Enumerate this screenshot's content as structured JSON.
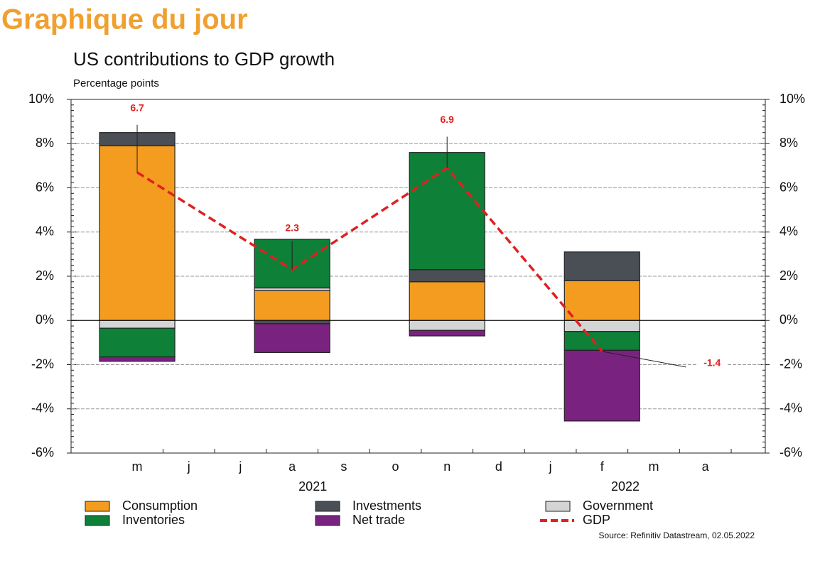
{
  "header": {
    "title": "Graphique du jour"
  },
  "chart_data": {
    "type": "stacked_bar_line",
    "title": "US contributions to GDP growth",
    "subtitle": "Percentage points",
    "source": "Source: Refinitiv Datastream, 02.05.2022",
    "x": [
      0,
      3,
      6,
      9
    ],
    "xlim": [
      -1.28,
      12.16
    ],
    "xticks": [
      {
        "value": 0,
        "label": "m"
      },
      {
        "value": 1,
        "label": "j"
      },
      {
        "value": 2,
        "label": "j"
      },
      {
        "value": 3,
        "label": "a"
      },
      {
        "value": 4,
        "label": "s"
      },
      {
        "value": 5,
        "label": "o"
      },
      {
        "value": 6,
        "label": "n"
      },
      {
        "value": 7,
        "label": "d"
      },
      {
        "value": 8,
        "label": "j"
      },
      {
        "value": 9,
        "label": "f"
      },
      {
        "value": 10,
        "label": "m"
      },
      {
        "value": 11,
        "label": "a"
      }
    ],
    "year_labels": [
      {
        "x": 3.4,
        "label": "2021"
      },
      {
        "x": 9.45,
        "label": "2022"
      }
    ],
    "ylim": [
      -6,
      10
    ],
    "yticks": [
      {
        "value": -6,
        "label": "-6%"
      },
      {
        "value": -4,
        "label": "-4%"
      },
      {
        "value": -2,
        "label": "-2%"
      },
      {
        "value": 0,
        "label": "0%"
      },
      {
        "value": 2,
        "label": "2%"
      },
      {
        "value": 4,
        "label": "4%"
      },
      {
        "value": 6,
        "label": "6%"
      },
      {
        "value": 8,
        "label": "8%"
      },
      {
        "value": 10,
        "label": "10%"
      }
    ],
    "grid": true,
    "series": [
      {
        "name": "Consumption",
        "color": "#f39c1f",
        "values": [
          7.9,
          1.35,
          1.75,
          1.8
        ]
      },
      {
        "name": "Government",
        "color": "#d4d4d4",
        "values": [
          -0.35,
          0.12,
          -0.45,
          -0.5
        ]
      },
      {
        "name": "Investments",
        "color": "#4a4f55",
        "values": [
          0.6,
          -0.15,
          0.55,
          1.3
        ]
      },
      {
        "name": "Inventories",
        "color": "#0e8038",
        "values": [
          -1.3,
          2.2,
          5.3,
          -0.85
        ]
      },
      {
        "name": "Net trade",
        "color": "#7a2280",
        "values": [
          -0.2,
          -1.3,
          -0.25,
          -3.2
        ]
      },
      {
        "name": "GDP",
        "color": "#e02020",
        "type": "line",
        "values": [
          6.7,
          2.3,
          6.9,
          -1.4
        ]
      }
    ]
  }
}
